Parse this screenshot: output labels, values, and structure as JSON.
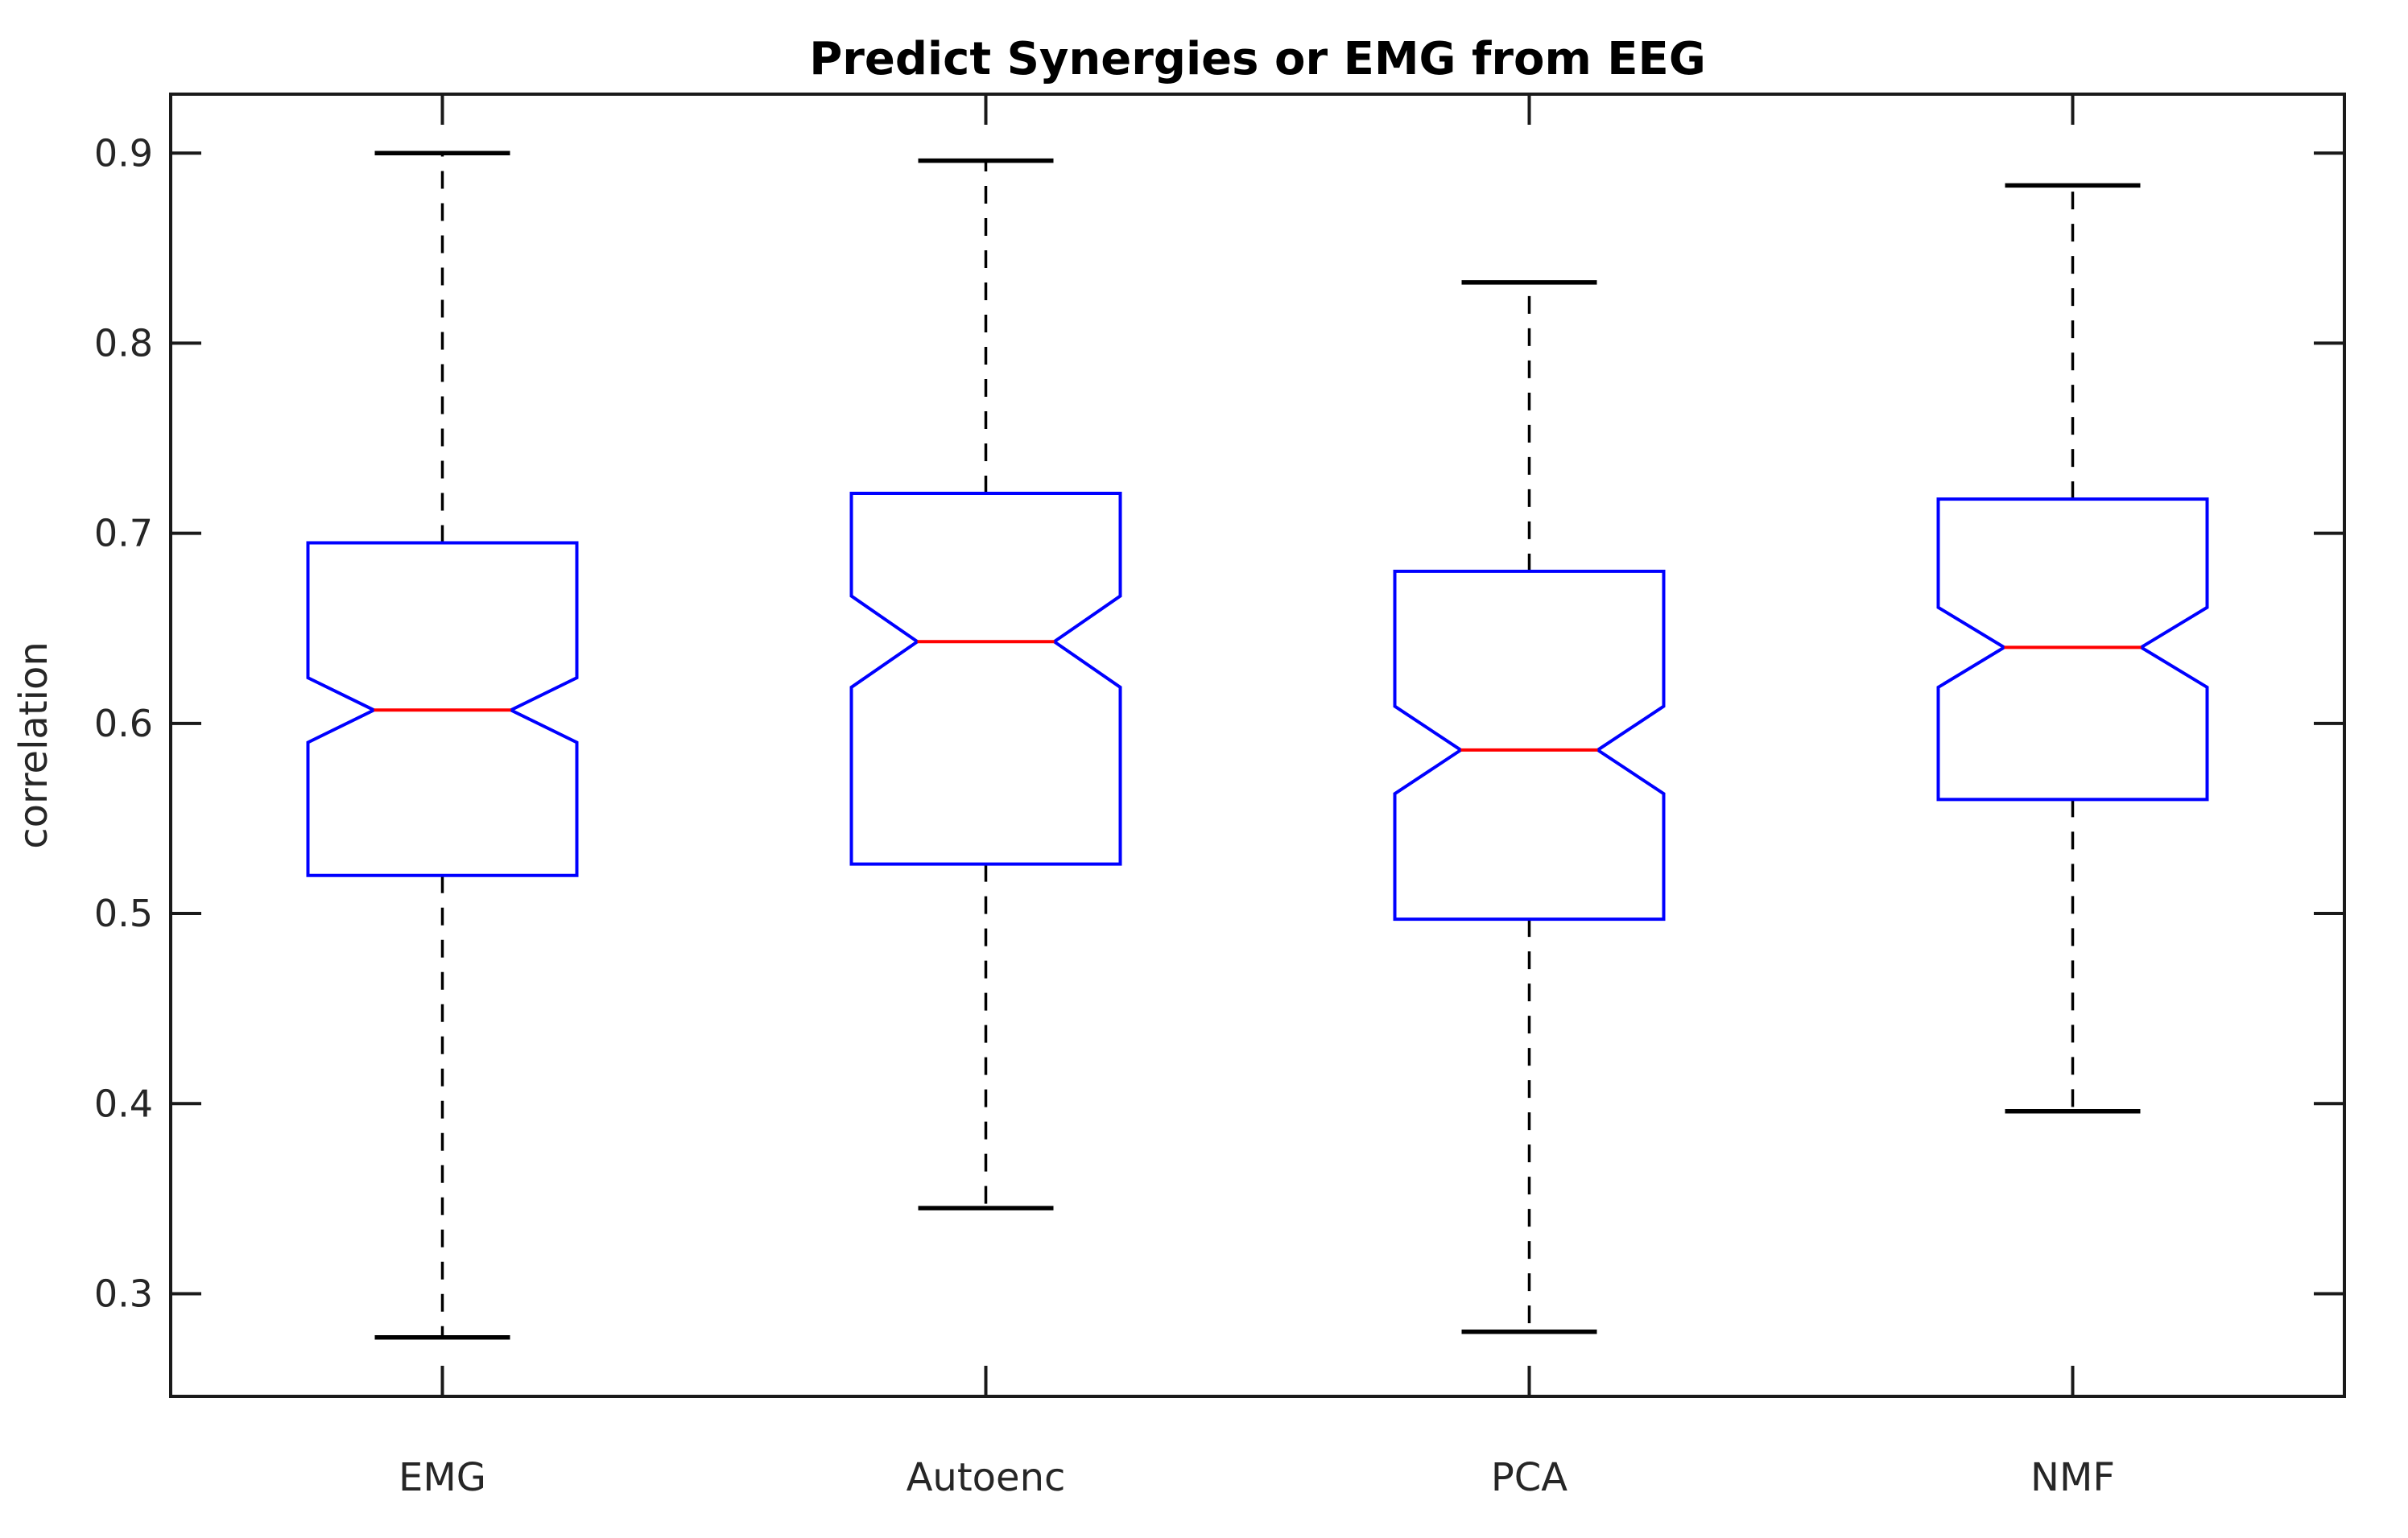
{
  "chart_data": {
    "type": "box",
    "notched": true,
    "title": "Predict Synergies or EMG from EEG",
    "ylabel": "correlation",
    "xlabel": "",
    "categories": [
      "EMG",
      "Autoenc",
      "PCA",
      "NMF"
    ],
    "yticks": [
      0.3,
      0.4,
      0.5,
      0.6,
      0.7,
      0.8,
      0.9
    ],
    "ytick_labels": [
      "0.3",
      "0.4",
      "0.5",
      "0.6",
      "0.7",
      "0.8",
      "0.9"
    ],
    "ylim": [
      0.246,
      0.931
    ],
    "grid": false,
    "legend": null,
    "series": [
      {
        "name": "EMG",
        "whisker_low": 0.277,
        "q1": 0.52,
        "notch_low": 0.59,
        "median": 0.607,
        "notch_high": 0.624,
        "q3": 0.695,
        "whisker_high": 0.9
      },
      {
        "name": "Autoenc",
        "whisker_low": 0.345,
        "q1": 0.526,
        "notch_low": 0.619,
        "median": 0.643,
        "notch_high": 0.667,
        "q3": 0.721,
        "whisker_high": 0.896
      },
      {
        "name": "PCA",
        "whisker_low": 0.28,
        "q1": 0.497,
        "notch_low": 0.563,
        "median": 0.586,
        "notch_high": 0.609,
        "q3": 0.68,
        "whisker_high": 0.832
      },
      {
        "name": "NMF",
        "whisker_low": 0.396,
        "q1": 0.56,
        "notch_low": 0.619,
        "median": 0.64,
        "notch_high": 0.661,
        "q3": 0.718,
        "whisker_high": 0.883
      }
    ],
    "colors": {
      "box": "#0000ff",
      "median": "#ff0000",
      "whisker": "#000000",
      "cap": "#000000",
      "axis": "#1a1a1a",
      "text": "#262626",
      "background": "#ffffff"
    }
  }
}
